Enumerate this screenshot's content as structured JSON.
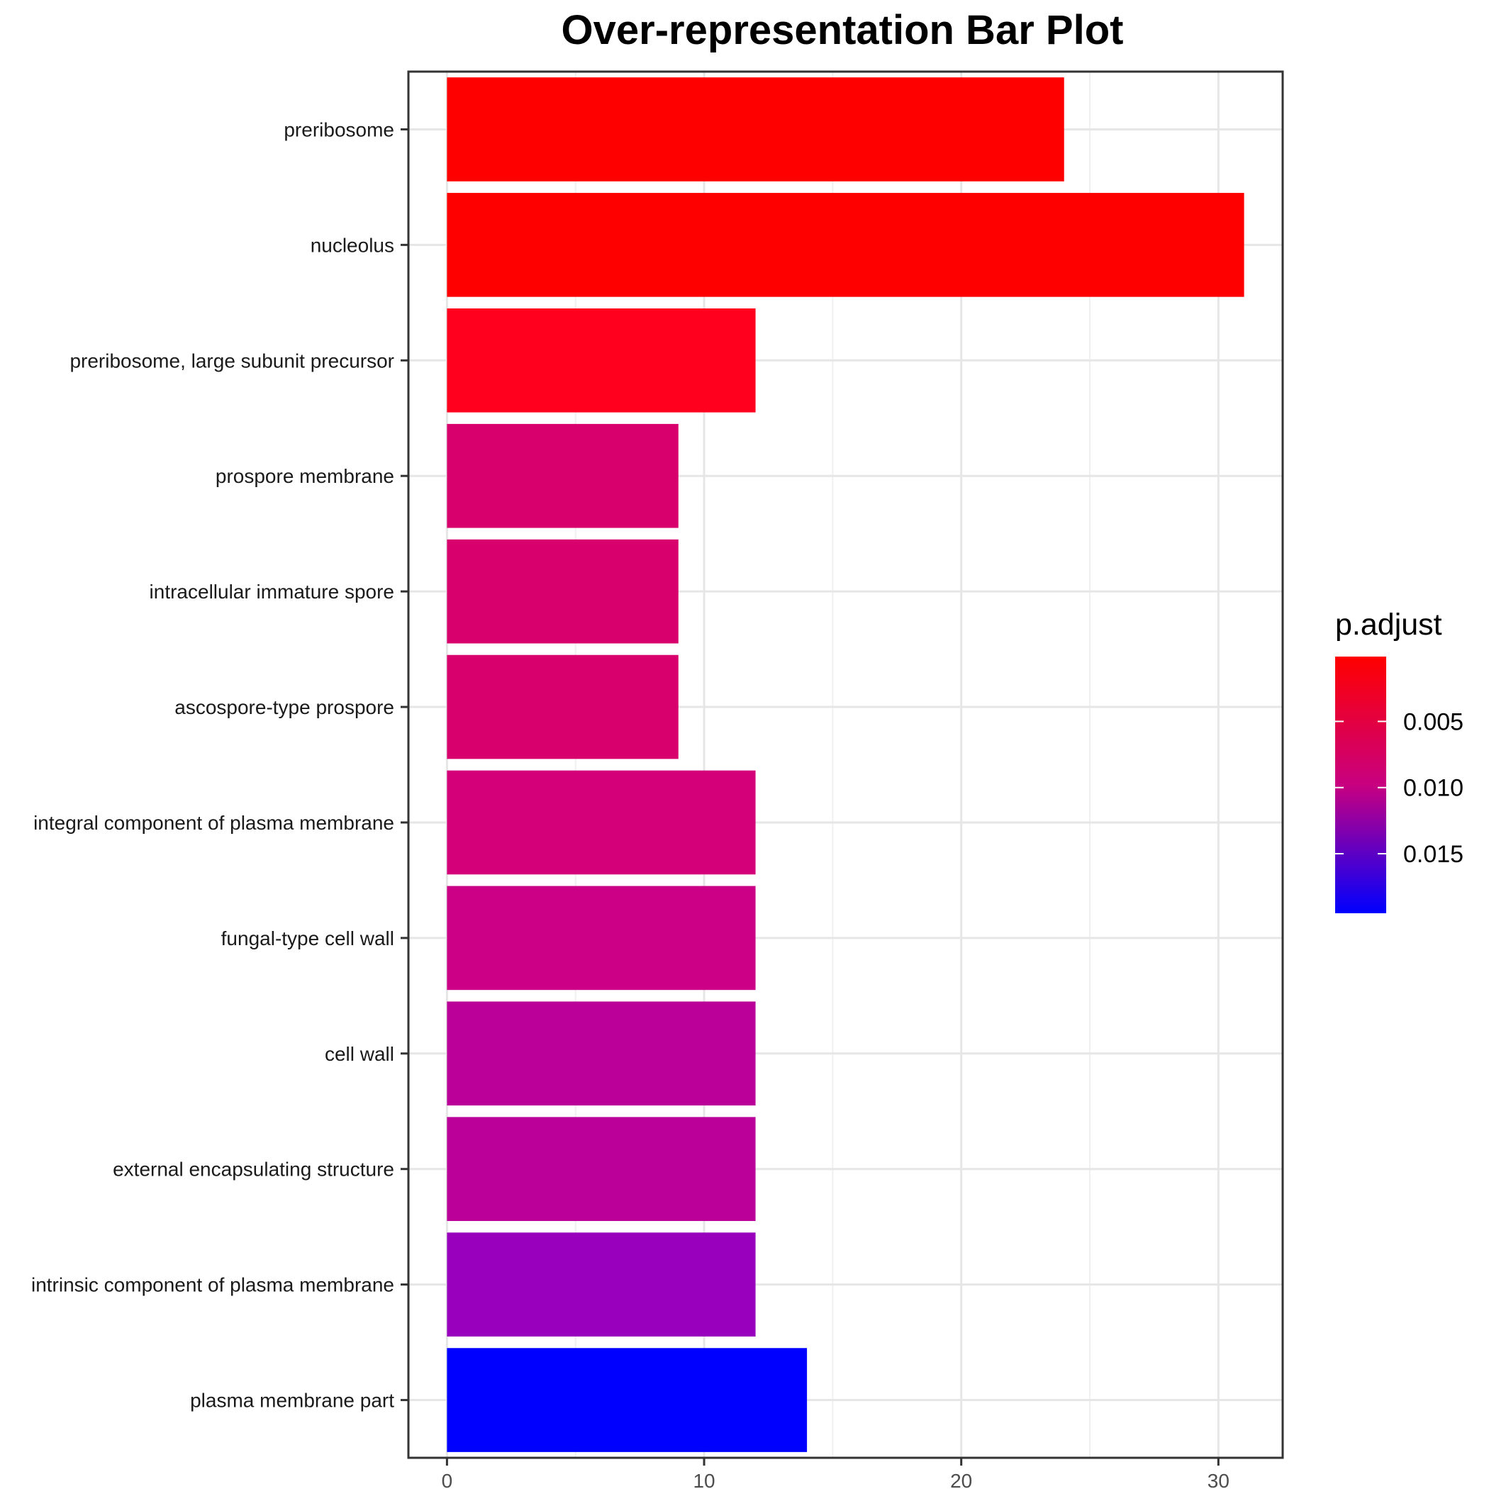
{
  "chart_data": {
    "type": "bar",
    "orientation": "horizontal",
    "title": "Over-representation Bar Plot",
    "xlabel": "",
    "ylabel": "",
    "xlim": [
      -1.5,
      32.5
    ],
    "x_ticks": [
      "0",
      "10",
      "20",
      "30"
    ],
    "x_tick_values": [
      0,
      10,
      20,
      30
    ],
    "grid": true,
    "categories": [
      "preribosome",
      "nucleolus",
      "preribosome, large subunit precursor",
      "prospore membrane",
      "intracellular immature spore",
      "ascospore-type prospore",
      "integral component of plasma membrane",
      "fungal-type cell wall",
      "cell wall",
      "external encapsulating structure",
      "intrinsic component of plasma membrane",
      "plasma membrane part"
    ],
    "values": [
      24,
      31,
      12,
      9,
      9,
      9,
      12,
      12,
      12,
      12,
      12,
      14
    ],
    "p_adjust": [
      0.0001,
      0.0002,
      0.0015,
      0.0068,
      0.0068,
      0.0068,
      0.0073,
      0.0085,
      0.0098,
      0.0098,
      0.0132,
      0.0195
    ],
    "colors": [
      "#ff0000",
      "#ff0000",
      "#ff001f",
      "#d8006d",
      "#d8006d",
      "#d8006d",
      "#d4007a",
      "#cc0087",
      "#bb009a",
      "#bb009a",
      "#9900be",
      "#0000ff"
    ],
    "legend": {
      "title": "p.adjust",
      "position": "right",
      "type": "colorbar",
      "tick_labels": [
        "0.005",
        "0.010",
        "0.015"
      ],
      "tick_values": [
        0.005,
        0.01,
        0.015
      ],
      "range": [
        0.0001,
        0.0195
      ],
      "low_color": "#ff0000",
      "high_color": "#0000ff"
    }
  }
}
